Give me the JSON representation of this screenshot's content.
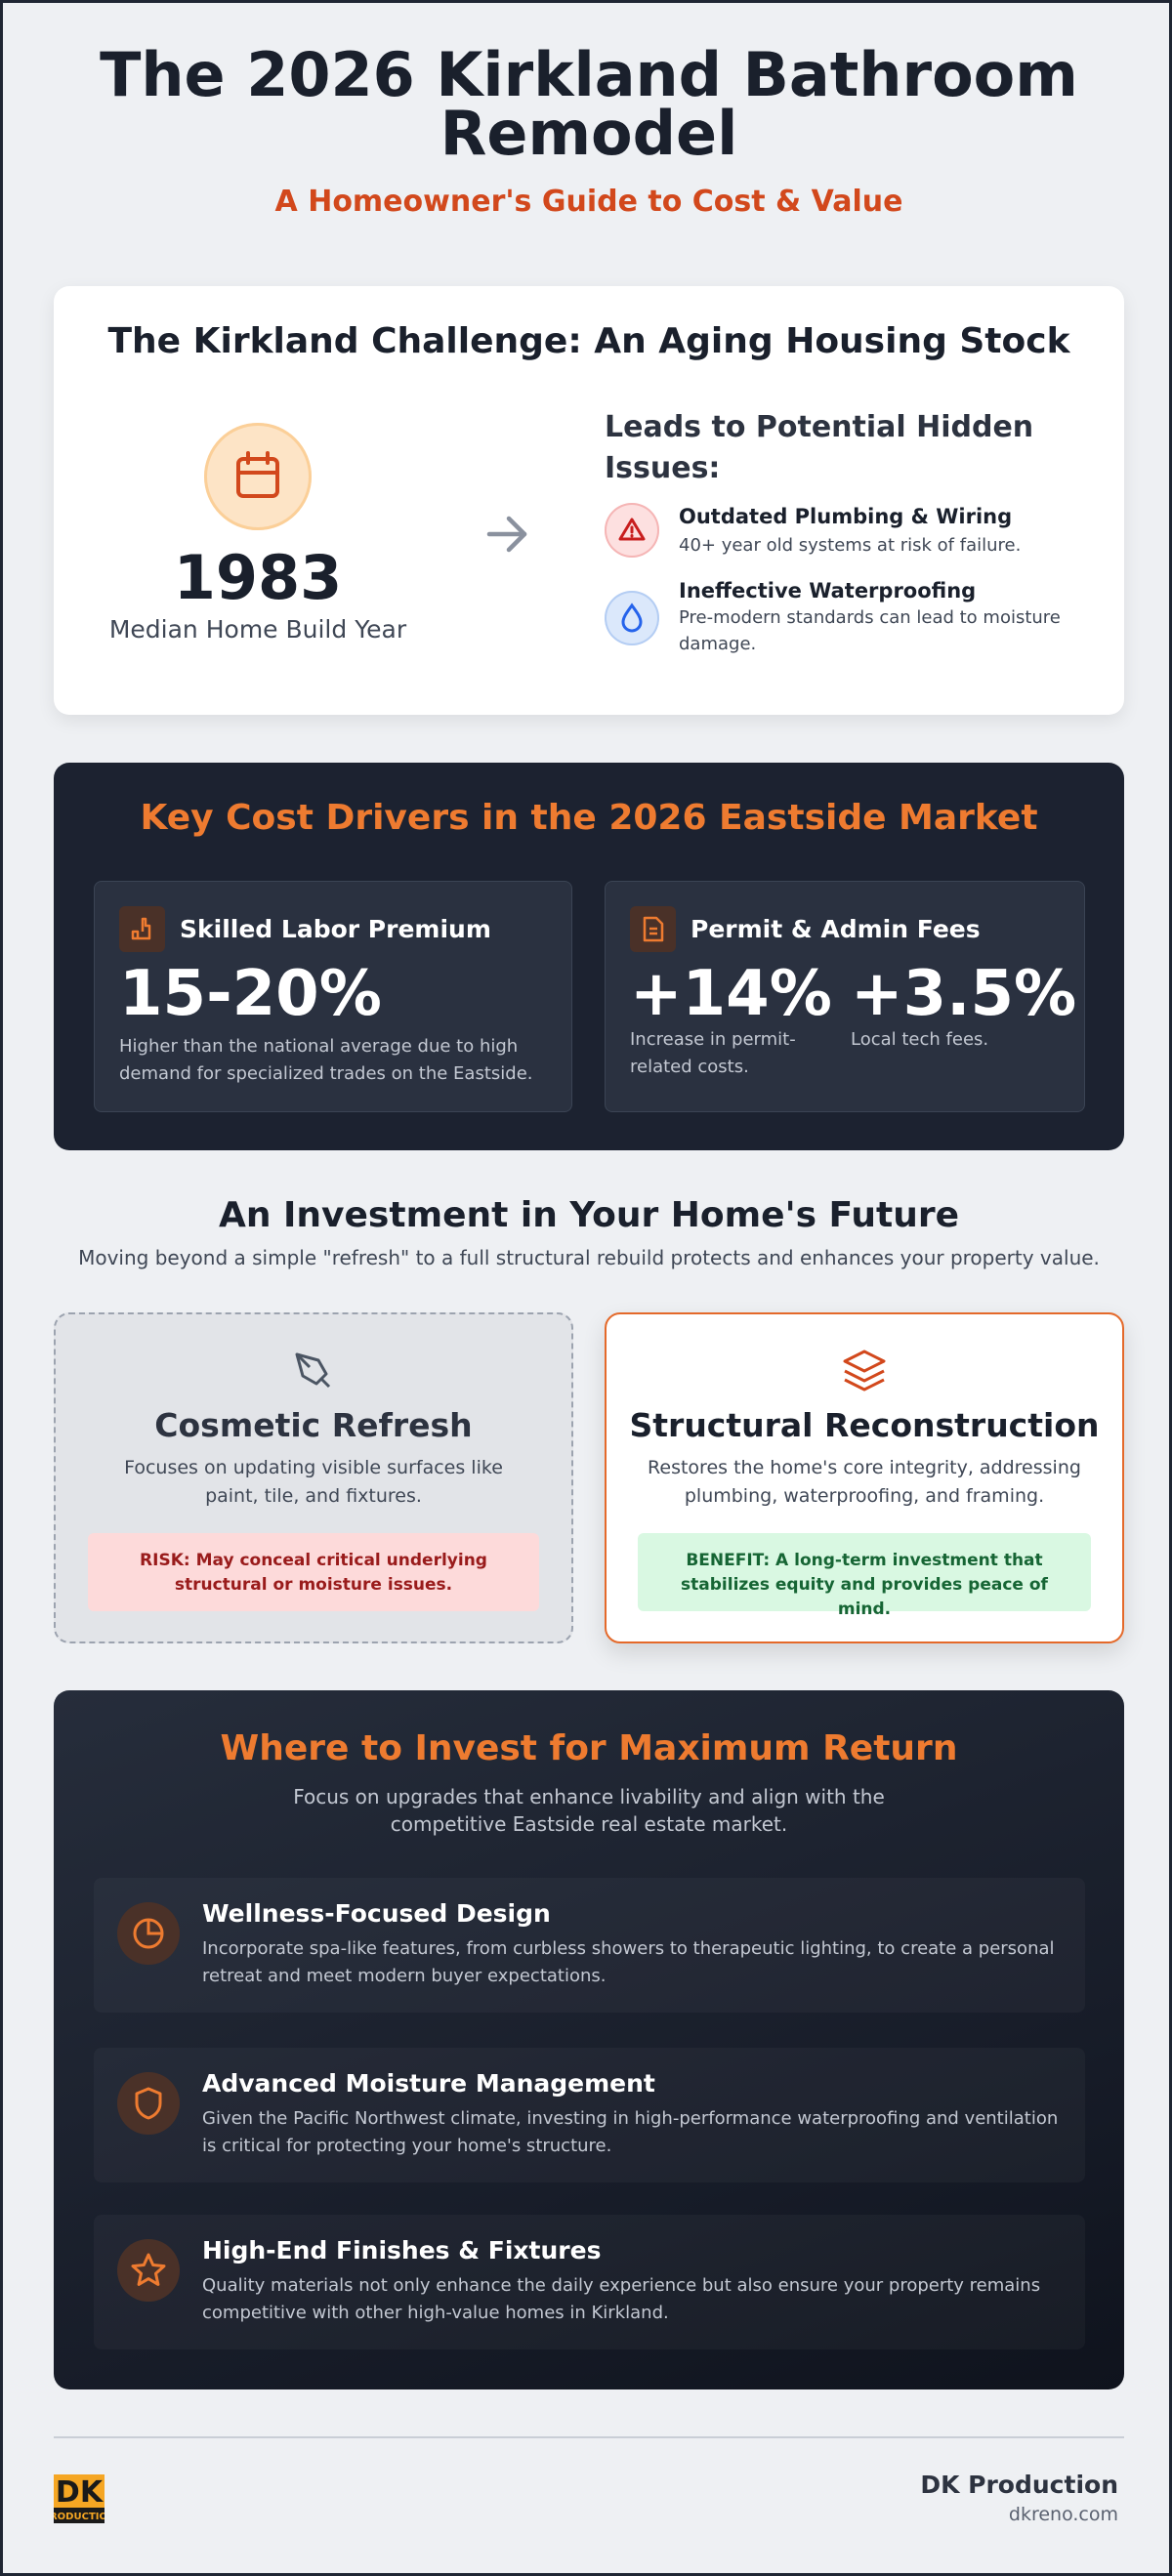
{
  "header": {
    "title": "The 2026 Kirkland Bathroom Remodel",
    "subtitle": "A Homeowner's Guide to Cost & Value"
  },
  "challenge": {
    "title": "The Kirkland Challenge: An Aging Housing Stock",
    "stat_value": "1983",
    "stat_label": "Median Home Build Year",
    "issues_heading": "Leads to Potential Hidden Issues:",
    "issues": [
      {
        "title": "Outdated Plumbing & Wiring",
        "description": "40+ year old systems at risk of failure."
      },
      {
        "title": "Ineffective Waterproofing",
        "description": "Pre-modern standards can lead to moisture damage."
      }
    ]
  },
  "cost_drivers": {
    "title": "Key Cost Drivers in the 2026 Eastside Market",
    "drivers": [
      {
        "title": "Skilled Labor Premium",
        "stats": [
          {
            "value": "15-20%",
            "description": "Higher than the national average due to high demand for specialized trades on the Eastside."
          }
        ]
      },
      {
        "title": "Permit & Admin Fees",
        "stats": [
          {
            "value": "+14%",
            "description": "Increase in permit-related costs."
          },
          {
            "value": "+3.5%",
            "description": "Local tech fees."
          }
        ]
      }
    ]
  },
  "investment": {
    "title": "An Investment in Your Home's Future",
    "subtitle": "Moving beyond a simple \"refresh\" to a full structural rebuild protects and enhances your property value.",
    "options": [
      {
        "title": "Cosmetic Refresh",
        "description": "Focuses on updating visible surfaces like paint, tile, and fixtures.",
        "note": "RISK: May conceal critical underlying structural or moisture issues."
      },
      {
        "title": "Structural Reconstruction",
        "description": "Restores the home's core integrity, addressing plumbing, waterproofing, and framing.",
        "note": "BENEFIT: A long-term investment that stabilizes equity and provides peace of mind."
      }
    ]
  },
  "returns": {
    "title": "Where to Invest for Maximum Return",
    "subtitle": "Focus on upgrades that enhance livability and align with the competitive Eastside real estate market.",
    "items": [
      {
        "title": "Wellness-Focused Design",
        "description": "Incorporate spa-like features, from curbless showers to therapeutic lighting, to create a personal retreat and meet modern buyer expectations."
      },
      {
        "title": "Advanced Moisture Management",
        "description": "Given the Pacific Northwest climate, investing in high-performance waterproofing and ventilation is critical for protecting your home's structure."
      },
      {
        "title": "High-End Finishes & Fixtures",
        "description": "Quality materials not only enhance the daily experience but also ensure your property remains competitive with other high-value homes in Kirkland."
      }
    ]
  },
  "footer": {
    "company": "DK Production",
    "website": "dkreno.com"
  }
}
